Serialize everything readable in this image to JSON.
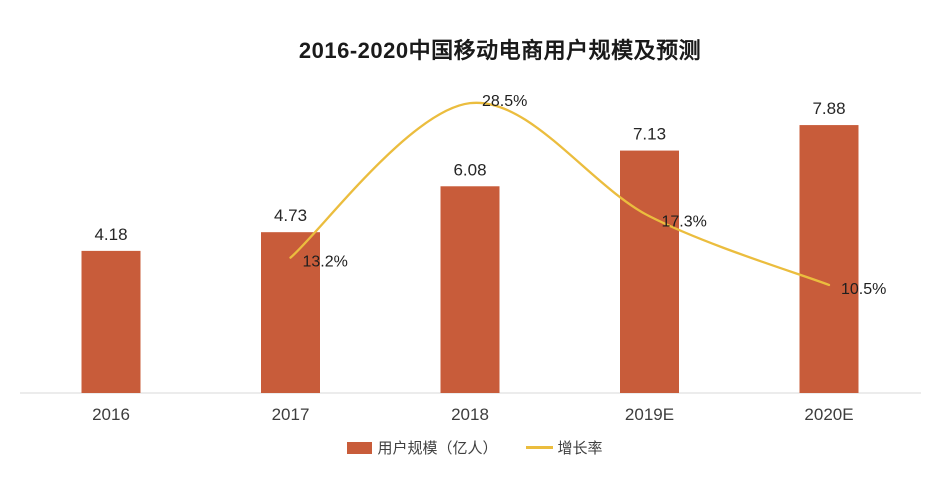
{
  "title": "2016-2020中国移动电商用户规模及预测",
  "legend": [
    {
      "label": "用户规模（亿人）",
      "swatch": "bar-swatch"
    },
    {
      "label": "增长率",
      "swatch": "line-swatch"
    }
  ],
  "colors": {
    "bar": "#C85C3A",
    "line": "#EBBD3E",
    "axis": "#D9D9D9",
    "title_text": "#1A1A1A",
    "value_text": "#262626",
    "tick_text": "#3D3D3D",
    "pct_text": "#1F1F1F"
  },
  "chart_data": {
    "type": "bar",
    "title": "2016-2020中国移动电商用户规模及预测",
    "xlabel": "",
    "ylabel": "",
    "categories": [
      "2016",
      "2017",
      "2018",
      "2019E",
      "2020E"
    ],
    "series": [
      {
        "name": "用户规模（亿人）",
        "type": "bar",
        "unit": "亿人",
        "values": [
          4.18,
          4.73,
          6.08,
          7.13,
          7.88
        ],
        "labels": [
          "4.18",
          "4.73",
          "6.08",
          "7.13",
          "7.88"
        ]
      },
      {
        "name": "增长率",
        "type": "line",
        "unit": "%",
        "values": [
          null,
          13.2,
          28.5,
          17.3,
          10.5
        ],
        "labels": [
          null,
          "13.2%",
          "28.5%",
          "17.3%",
          "10.5%"
        ]
      }
    ],
    "grid": false,
    "legend_position": "bottom",
    "data_labels_visible": true
  }
}
